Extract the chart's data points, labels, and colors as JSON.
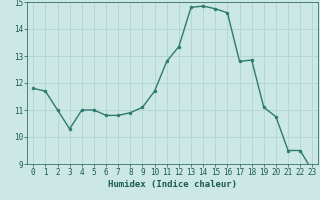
{
  "xlabel": "Humidex (Indice chaleur)",
  "x_values": [
    0,
    1,
    2,
    3,
    4,
    5,
    6,
    7,
    8,
    9,
    10,
    11,
    12,
    13,
    14,
    15,
    16,
    17,
    18,
    19,
    20,
    21,
    22,
    23
  ],
  "y_values": [
    11.8,
    11.7,
    11.0,
    10.3,
    11.0,
    11.0,
    10.8,
    10.8,
    10.9,
    11.1,
    11.7,
    12.8,
    13.35,
    14.8,
    14.85,
    14.75,
    14.6,
    12.8,
    12.85,
    11.1,
    10.75,
    9.5,
    9.5,
    8.75
  ],
  "ylim": [
    9,
    15
  ],
  "xlim_min": -0.5,
  "xlim_max": 23.5,
  "yticks": [
    9,
    10,
    11,
    12,
    13,
    14,
    15
  ],
  "xticks": [
    0,
    1,
    2,
    3,
    4,
    5,
    6,
    7,
    8,
    9,
    10,
    11,
    12,
    13,
    14,
    15,
    16,
    17,
    18,
    19,
    20,
    21,
    22,
    23
  ],
  "line_color": "#2d7a6e",
  "marker_color": "#2d7a6e",
  "bg_color": "#cce8e4",
  "grid_color": "#b0d0cc",
  "axis_label_color": "#1a5a52",
  "tick_color": "#1a5a52",
  "xlabel_fontsize": 6.5,
  "tick_fontsize": 5.5,
  "marker_size": 2.0,
  "line_width": 1.0
}
